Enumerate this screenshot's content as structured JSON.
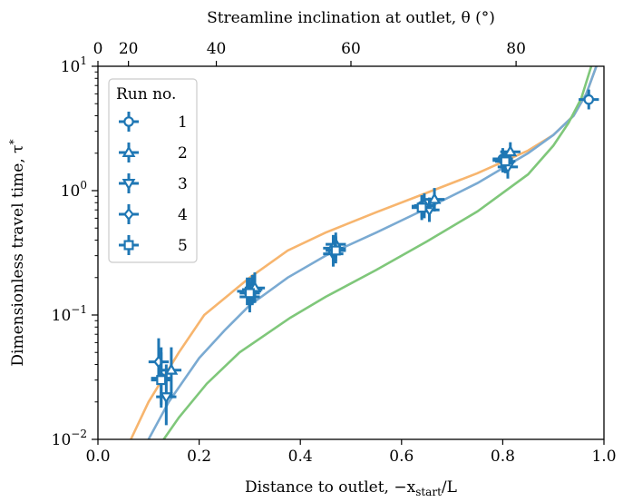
{
  "chart_data": {
    "type": "scatter",
    "xlabel": "Distance to outlet, −x",
    "xlabel_sub": "start",
    "xlabel_tail": "/L",
    "ylabel": "Dimensionless travel time, τ",
    "ylabel_sup": "*",
    "top_xlabel": "Streamline inclination at outlet, θ (°)",
    "xlim": [
      0.0,
      1.0
    ],
    "ylim": [
      0.01,
      10
    ],
    "yscale": "log",
    "grid": false,
    "xticks": [
      {
        "v": 0.0,
        "label": "0.0"
      },
      {
        "v": 0.2,
        "label": "0.2"
      },
      {
        "v": 0.4,
        "label": "0.4"
      },
      {
        "v": 0.6,
        "label": "0.6"
      },
      {
        "v": 0.8,
        "label": "0.8"
      },
      {
        "v": 1.0,
        "label": "1.0"
      }
    ],
    "yticks": [
      {
        "v": 0.01,
        "base": "10",
        "exp": "−2"
      },
      {
        "v": 0.1,
        "base": "10",
        "exp": "−1"
      },
      {
        "v": 1,
        "base": "10",
        "exp": "0"
      },
      {
        "v": 10,
        "base": "10",
        "exp": "1"
      }
    ],
    "top_ticks": [
      {
        "theta": 0,
        "label": "0"
      },
      {
        "theta": 20,
        "label": "20"
      },
      {
        "theta": 40,
        "label": "40"
      },
      {
        "theta": 60,
        "label": "60"
      },
      {
        "theta": 80,
        "label": "80"
      }
    ],
    "legend": {
      "title": "Run no.",
      "position": "upper-left"
    },
    "colors": {
      "points": "#1f77b4",
      "blue_curve": "#7aaad2",
      "orange_curve": "#f7b56e",
      "green_curve": "#7fc77a"
    },
    "series": [
      {
        "name": "1",
        "marker": "circle",
        "points": [
          {
            "x": 0.125,
            "y": 0.031,
            "xerr": 0.02,
            "ylo": 0.018,
            "yhi": 0.055
          },
          {
            "x": 0.305,
            "y": 0.16,
            "xerr": 0.02,
            "ylo": 0.12,
            "yhi": 0.21
          },
          {
            "x": 0.47,
            "y": 0.34,
            "xerr": 0.02,
            "ylo": 0.27,
            "yhi": 0.43
          },
          {
            "x": 0.64,
            "y": 0.75,
            "xerr": 0.02,
            "ylo": 0.6,
            "yhi": 0.92
          },
          {
            "x": 0.8,
            "y": 1.8,
            "xerr": 0.02,
            "ylo": 1.45,
            "yhi": 2.2
          },
          {
            "x": 0.97,
            "y": 5.4,
            "xerr": 0.02,
            "ylo": 4.5,
            "yhi": 6.5
          }
        ]
      },
      {
        "name": "2",
        "marker": "triangle-up",
        "points": [
          {
            "x": 0.145,
            "y": 0.036,
            "xerr": 0.02,
            "ylo": 0.022,
            "yhi": 0.055
          },
          {
            "x": 0.31,
            "y": 0.165,
            "xerr": 0.02,
            "ylo": 0.125,
            "yhi": 0.22
          },
          {
            "x": 0.47,
            "y": 0.37,
            "xerr": 0.02,
            "ylo": 0.29,
            "yhi": 0.46
          },
          {
            "x": 0.665,
            "y": 0.85,
            "xerr": 0.02,
            "ylo": 0.68,
            "yhi": 1.05
          },
          {
            "x": 0.815,
            "y": 2.05,
            "xerr": 0.02,
            "ylo": 1.7,
            "yhi": 2.45
          }
        ]
      },
      {
        "name": "3",
        "marker": "triangle-down",
        "points": [
          {
            "x": 0.135,
            "y": 0.022,
            "xerr": 0.02,
            "ylo": 0.013,
            "yhi": 0.04
          },
          {
            "x": 0.3,
            "y": 0.14,
            "xerr": 0.02,
            "ylo": 0.105,
            "yhi": 0.185
          },
          {
            "x": 0.465,
            "y": 0.31,
            "xerr": 0.02,
            "ylo": 0.245,
            "yhi": 0.39
          },
          {
            "x": 0.655,
            "y": 0.7,
            "xerr": 0.02,
            "ylo": 0.56,
            "yhi": 0.88
          },
          {
            "x": 0.81,
            "y": 1.55,
            "xerr": 0.02,
            "ylo": 1.25,
            "yhi": 1.95
          }
        ]
      },
      {
        "name": "4",
        "marker": "diamond",
        "points": [
          {
            "x": 0.12,
            "y": 0.042,
            "xerr": 0.02,
            "ylo": 0.028,
            "yhi": 0.065
          },
          {
            "x": 0.295,
            "y": 0.155,
            "xerr": 0.02,
            "ylo": 0.12,
            "yhi": 0.2
          },
          {
            "x": 0.465,
            "y": 0.345,
            "xerr": 0.02,
            "ylo": 0.27,
            "yhi": 0.44
          },
          {
            "x": 0.645,
            "y": 0.76,
            "xerr": 0.02,
            "ylo": 0.6,
            "yhi": 0.95
          },
          {
            "x": 0.8,
            "y": 1.75,
            "xerr": 0.02,
            "ylo": 1.4,
            "yhi": 2.15
          }
        ]
      },
      {
        "name": "5",
        "marker": "square",
        "points": [
          {
            "x": 0.125,
            "y": 0.03,
            "xerr": 0.02,
            "ylo": 0.019,
            "yhi": 0.05
          },
          {
            "x": 0.3,
            "y": 0.15,
            "xerr": 0.02,
            "ylo": 0.115,
            "yhi": 0.2
          },
          {
            "x": 0.47,
            "y": 0.33,
            "xerr": 0.02,
            "ylo": 0.26,
            "yhi": 0.42
          },
          {
            "x": 0.64,
            "y": 0.73,
            "xerr": 0.02,
            "ylo": 0.58,
            "yhi": 0.9
          },
          {
            "x": 0.805,
            "y": 1.72,
            "xerr": 0.02,
            "ylo": 1.38,
            "yhi": 2.1
          }
        ]
      }
    ],
    "curves": [
      {
        "color": "orange",
        "points": [
          [
            0.065,
            0.01
          ],
          [
            0.1,
            0.02
          ],
          [
            0.16,
            0.05
          ],
          [
            0.21,
            0.1
          ],
          [
            0.3,
            0.2
          ],
          [
            0.375,
            0.33
          ],
          [
            0.45,
            0.46
          ],
          [
            0.55,
            0.67
          ],
          [
            0.65,
            0.96
          ],
          [
            0.75,
            1.38
          ],
          [
            0.85,
            2.1
          ],
          [
            0.9,
            2.8
          ],
          [
            0.94,
            4
          ],
          [
            0.965,
            6
          ],
          [
            0.985,
            10
          ]
        ]
      },
      {
        "color": "blue",
        "points": [
          [
            0.1,
            0.01
          ],
          [
            0.14,
            0.02
          ],
          [
            0.2,
            0.045
          ],
          [
            0.25,
            0.075
          ],
          [
            0.3,
            0.12
          ],
          [
            0.375,
            0.2
          ],
          [
            0.45,
            0.3
          ],
          [
            0.55,
            0.46
          ],
          [
            0.65,
            0.72
          ],
          [
            0.75,
            1.15
          ],
          [
            0.85,
            2
          ],
          [
            0.9,
            2.8
          ],
          [
            0.94,
            4
          ],
          [
            0.965,
            6
          ],
          [
            0.985,
            10
          ]
        ]
      },
      {
        "color": "green",
        "points": [
          [
            0.13,
            0.01
          ],
          [
            0.16,
            0.015
          ],
          [
            0.215,
            0.028
          ],
          [
            0.28,
            0.05
          ],
          [
            0.38,
            0.095
          ],
          [
            0.45,
            0.14
          ],
          [
            0.55,
            0.23
          ],
          [
            0.65,
            0.39
          ],
          [
            0.75,
            0.68
          ],
          [
            0.85,
            1.35
          ],
          [
            0.9,
            2.3
          ],
          [
            0.93,
            3.5
          ],
          [
            0.955,
            5.5
          ],
          [
            0.975,
            10
          ]
        ]
      }
    ]
  }
}
